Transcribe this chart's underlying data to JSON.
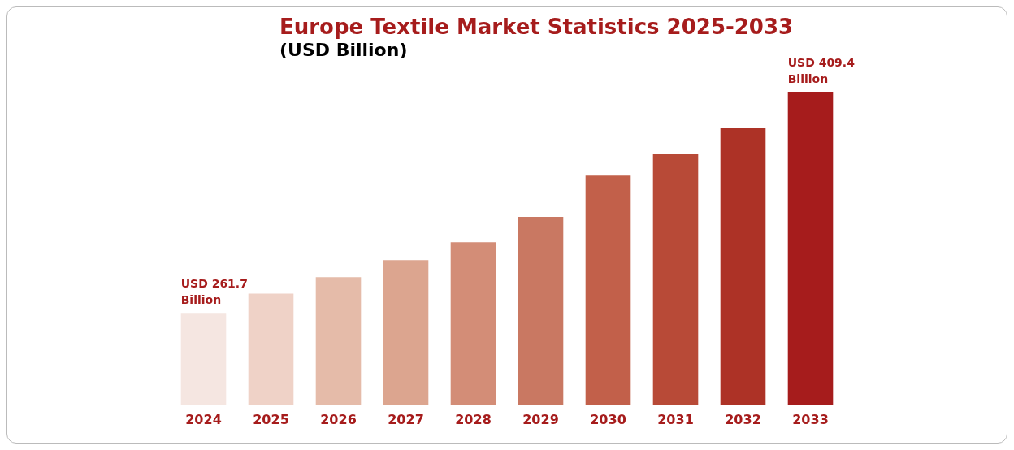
{
  "chart_data": {
    "type": "bar",
    "title": "Europe Textile Market Statistics 2025-2033",
    "subtitle": "(USD Billion)",
    "ylim": [
      200.5,
      409.4
    ],
    "categories": [
      "2024",
      "2025",
      "2026",
      "2027",
      "2028",
      "2029",
      "2030",
      "2031",
      "2032",
      "2033"
    ],
    "values": [
      261.7,
      274.6,
      285.5,
      296.9,
      308.9,
      325.9,
      353.4,
      367.9,
      385.0,
      409.4
    ],
    "colors": [
      "#f5e6e1",
      "#efd2c7",
      "#e5bba9",
      "#dca58f",
      "#d38d77",
      "#c97862",
      "#c2604a",
      "#b84a37",
      "#ad3226",
      "#a61c1c"
    ],
    "value_labels": [
      "USD 261.7 Billion",
      null,
      null,
      null,
      null,
      null,
      null,
      null,
      null,
      "USD 409.4 Billion"
    ]
  }
}
